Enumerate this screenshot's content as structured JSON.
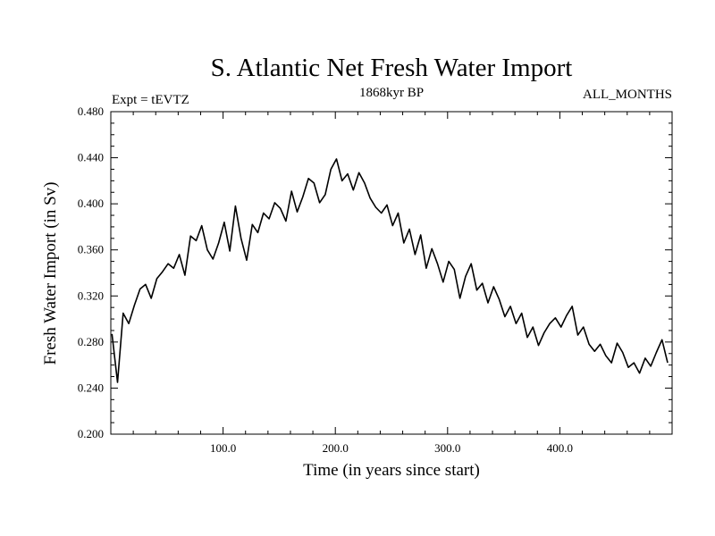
{
  "chart_data": {
    "type": "line",
    "title": "S. Atlantic Net Fresh Water Import",
    "subtitle_left": "Expt = tEVTZ",
    "subtitle_center": "1868kyr BP",
    "subtitle_right": "ALL_MONTHS",
    "xlabel": "Time (in years since start)",
    "ylabel": "Fresh Water Import (in Sv)",
    "xlim": [
      0,
      500
    ],
    "ylim": [
      0.2,
      0.48
    ],
    "x_ticks": [
      100,
      200,
      300,
      400
    ],
    "x_tick_labels": [
      "100.0",
      "200.0",
      "300.0",
      "400.0"
    ],
    "y_ticks": [
      0.2,
      0.24,
      0.28,
      0.32,
      0.36,
      0.4,
      0.44,
      0.48
    ],
    "y_tick_labels": [
      "0.200",
      "0.240",
      "0.280",
      "0.320",
      "0.360",
      "0.400",
      "0.440",
      "0.480"
    ],
    "grid": false,
    "series": [
      {
        "name": "Fresh Water Import",
        "color": "#000000",
        "x_start": 1,
        "x_step": 5,
        "values": [
          0.287,
          0.245,
          0.305,
          0.296,
          0.312,
          0.326,
          0.33,
          0.318,
          0.335,
          0.341,
          0.348,
          0.344,
          0.356,
          0.338,
          0.372,
          0.368,
          0.381,
          0.36,
          0.352,
          0.366,
          0.384,
          0.359,
          0.398,
          0.37,
          0.351,
          0.382,
          0.375,
          0.392,
          0.387,
          0.401,
          0.396,
          0.385,
          0.411,
          0.393,
          0.406,
          0.422,
          0.418,
          0.401,
          0.408,
          0.43,
          0.439,
          0.42,
          0.426,
          0.412,
          0.427,
          0.418,
          0.405,
          0.397,
          0.392,
          0.399,
          0.381,
          0.392,
          0.366,
          0.378,
          0.356,
          0.373,
          0.344,
          0.361,
          0.348,
          0.332,
          0.35,
          0.343,
          0.318,
          0.337,
          0.348,
          0.325,
          0.331,
          0.314,
          0.328,
          0.317,
          0.302,
          0.311,
          0.296,
          0.305,
          0.284,
          0.293,
          0.277,
          0.288,
          0.296,
          0.301,
          0.293,
          0.303,
          0.311,
          0.286,
          0.293,
          0.278,
          0.272,
          0.278,
          0.268,
          0.262,
          0.279,
          0.271,
          0.258,
          0.262,
          0.253,
          0.266,
          0.259,
          0.271,
          0.282,
          0.262
        ]
      }
    ]
  }
}
